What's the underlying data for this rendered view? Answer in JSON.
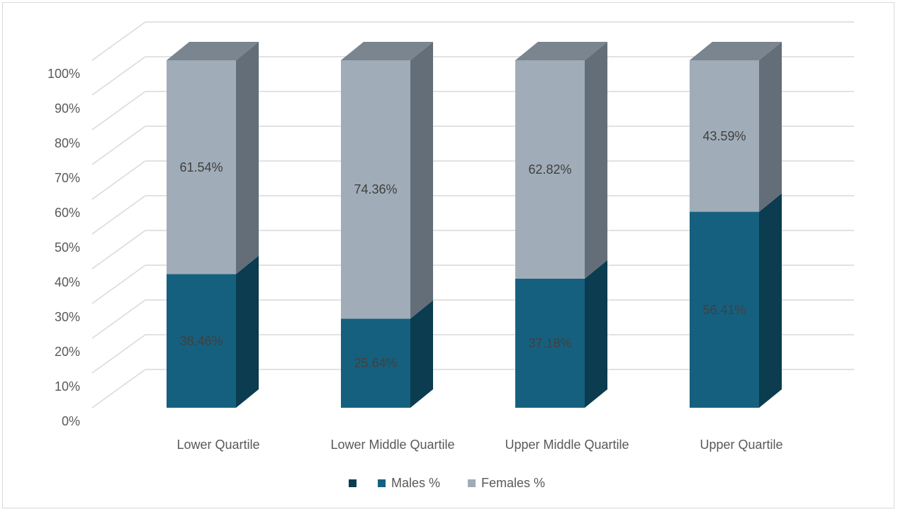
{
  "chart_data": {
    "type": "bar",
    "stacked": true,
    "three_d": true,
    "categories": [
      "Lower Quartile",
      "Lower Middle Quartile",
      "Upper Middle Quartile",
      "Upper Quartile"
    ],
    "series": [
      {
        "name": "Males %",
        "values": [
          38.46,
          25.64,
          37.18,
          56.41
        ],
        "labels": [
          "38.46%",
          "25.64%",
          "37.18%",
          "56.41%"
        ],
        "color": "#16607f",
        "side_color": "#0b3c50"
      },
      {
        "name": "Females %",
        "values": [
          61.54,
          74.36,
          62.82,
          43.59
        ],
        "labels": [
          "61.54%",
          "74.36%",
          "62.82%",
          "43.59%"
        ],
        "color": "#a0adb8",
        "side_color": "#636e78",
        "top_color": "#7a858f"
      }
    ],
    "legend_extra_marker_color": "#0b3c50",
    "y_ticks": [
      "0%",
      "10%",
      "20%",
      "30%",
      "40%",
      "50%",
      "60%",
      "70%",
      "80%",
      "90%",
      "100%"
    ],
    "ylim": [
      0,
      100
    ],
    "grid": true,
    "legend": "bottom"
  }
}
